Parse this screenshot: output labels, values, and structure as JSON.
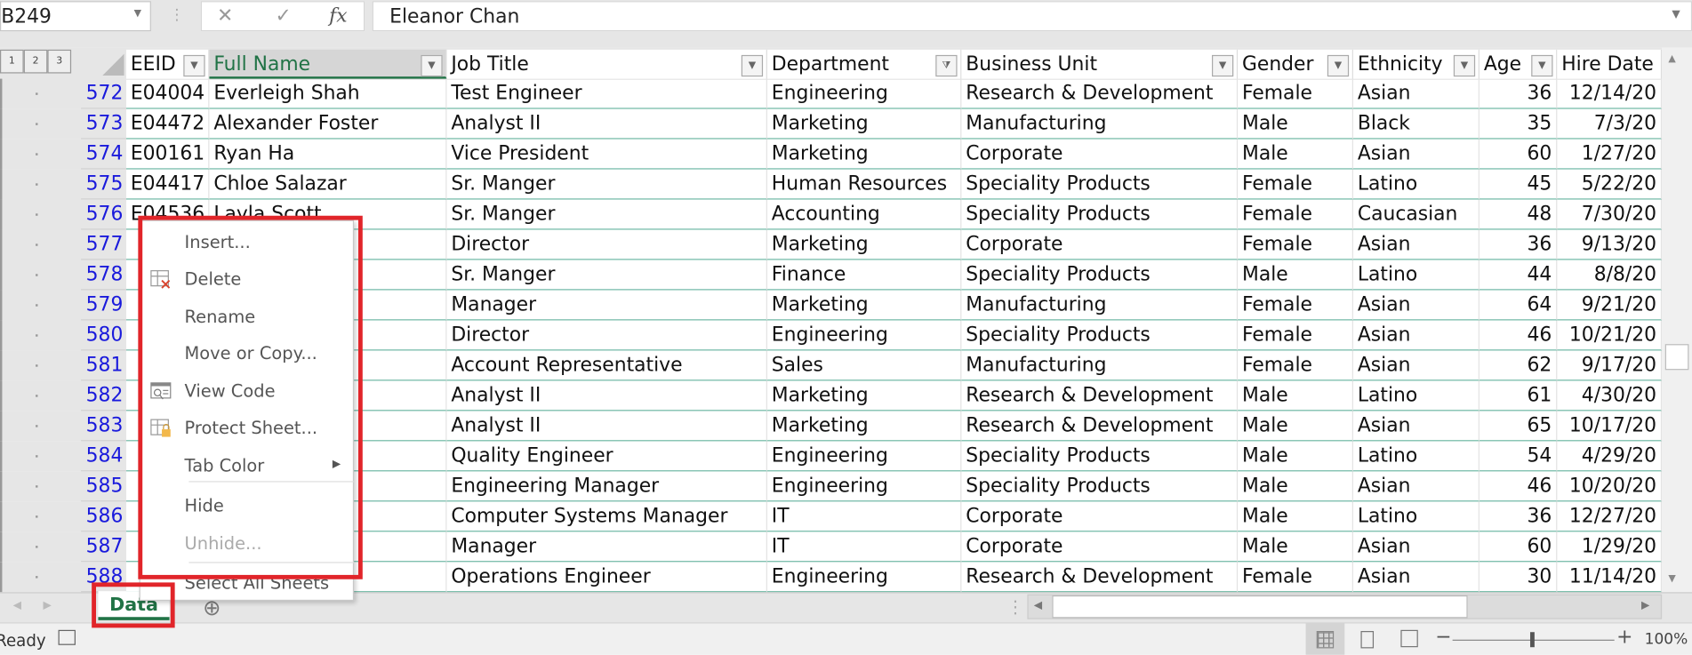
{
  "formula_bar": {
    "name_box": "B249",
    "formula": "Eleanor Chan",
    "cancel_icon": "✕",
    "enter_icon": "✓",
    "fx_label": "fx"
  },
  "outline_levels": [
    "1",
    "2",
    "3"
  ],
  "columns": [
    {
      "label": "EEID",
      "filter": "dropdown"
    },
    {
      "label": "Full Name",
      "filter": "dropdown"
    },
    {
      "label": "Job Title",
      "filter": "dropdown"
    },
    {
      "label": "Department",
      "filter": "filtered"
    },
    {
      "label": "Business Unit",
      "filter": "dropdown"
    },
    {
      "label": "Gender",
      "filter": "dropdown"
    },
    {
      "label": "Ethnicity",
      "filter": "dropdown"
    },
    {
      "label": "Age",
      "filter": "dropdown"
    },
    {
      "label": "Hire Date",
      "filter": "dropdown"
    }
  ],
  "rows": [
    {
      "n": "572",
      "cells": [
        "E04004",
        "Everleigh Shah",
        "Test Engineer",
        "Engineering",
        "Research & Development",
        "Female",
        "Asian",
        "36",
        "12/14/20"
      ]
    },
    {
      "n": "573",
      "cells": [
        "E04472",
        "Alexander Foster",
        "Analyst II",
        "Marketing",
        "Manufacturing",
        "Male",
        "Black",
        "35",
        "7/3/20"
      ]
    },
    {
      "n": "574",
      "cells": [
        "E00161",
        "Ryan Ha",
        "Vice President",
        "Marketing",
        "Corporate",
        "Male",
        "Asian",
        "60",
        "1/27/20"
      ]
    },
    {
      "n": "575",
      "cells": [
        "E04417",
        "Chloe Salazar",
        "Sr. Manger",
        "Human Resources",
        "Speciality Products",
        "Female",
        "Latino",
        "45",
        "5/22/20"
      ]
    },
    {
      "n": "576",
      "cells": [
        "E04536",
        "Layla Scott",
        "Sr. Manger",
        "Accounting",
        "Speciality Products",
        "Female",
        "Caucasian",
        "48",
        "7/30/20"
      ]
    },
    {
      "n": "577",
      "cells": [
        "",
        "",
        "Director",
        "Marketing",
        "Corporate",
        "Female",
        "Asian",
        "36",
        "9/13/20"
      ]
    },
    {
      "n": "578",
      "cells": [
        "",
        "",
        "Sr. Manger",
        "Finance",
        "Speciality Products",
        "Male",
        "Latino",
        "44",
        "8/8/20"
      ]
    },
    {
      "n": "579",
      "cells": [
        "",
        "",
        "Manager",
        "Marketing",
        "Manufacturing",
        "Female",
        "Asian",
        "64",
        "9/21/20"
      ]
    },
    {
      "n": "580",
      "cells": [
        "",
        "",
        "Director",
        "Engineering",
        "Speciality Products",
        "Female",
        "Asian",
        "46",
        "10/21/20"
      ]
    },
    {
      "n": "581",
      "cells": [
        "",
        "",
        "Account Representative",
        "Sales",
        "Manufacturing",
        "Female",
        "Asian",
        "62",
        "9/17/20"
      ]
    },
    {
      "n": "582",
      "cells": [
        "",
        "",
        "Analyst II",
        "Marketing",
        "Research & Development",
        "Male",
        "Latino",
        "61",
        "4/30/20"
      ]
    },
    {
      "n": "583",
      "cells": [
        "",
        "",
        "Analyst II",
        "Marketing",
        "Research & Development",
        "Male",
        "Asian",
        "65",
        "10/17/20"
      ]
    },
    {
      "n": "584",
      "cells": [
        "",
        "",
        "Quality Engineer",
        "Engineering",
        "Speciality Products",
        "Male",
        "Latino",
        "54",
        "4/29/20"
      ]
    },
    {
      "n": "585",
      "cells": [
        "",
        "",
        "Engineering Manager",
        "Engineering",
        "Speciality Products",
        "Male",
        "Asian",
        "46",
        "10/20/20"
      ]
    },
    {
      "n": "586",
      "cells": [
        "",
        "",
        "Computer Systems Manager",
        "IT",
        "Corporate",
        "Male",
        "Latino",
        "36",
        "12/27/20"
      ]
    },
    {
      "n": "587",
      "cells": [
        "",
        "",
        "Manager",
        "IT",
        "Corporate",
        "Male",
        "Asian",
        "60",
        "1/29/20"
      ]
    },
    {
      "n": "588",
      "cells": [
        "",
        "",
        "Operations Engineer",
        "Engineering",
        "Research & Development",
        "Female",
        "Asian",
        "30",
        "11/14/20"
      ]
    }
  ],
  "context_menu": {
    "items": [
      {
        "label": "Insert...",
        "icon": "",
        "enabled": true
      },
      {
        "label": "Delete",
        "icon": "delete-sheet-icon",
        "enabled": true
      },
      {
        "label": "Rename",
        "icon": "",
        "enabled": true
      },
      {
        "label": "Move or Copy...",
        "icon": "",
        "enabled": true
      },
      {
        "label": "View Code",
        "icon": "view-code-icon",
        "enabled": true
      },
      {
        "label": "Protect Sheet...",
        "icon": "protect-sheet-icon",
        "enabled": true
      },
      {
        "label": "Tab Color",
        "icon": "",
        "enabled": true,
        "submenu": true
      },
      {
        "label": "Hide",
        "icon": "",
        "enabled": true
      },
      {
        "label": "Unhide...",
        "icon": "",
        "enabled": false
      },
      {
        "label": "Select All Sheets",
        "icon": "",
        "enabled": true
      }
    ]
  },
  "sheet_tabs": [
    {
      "label": "Data",
      "active": true
    }
  ],
  "add_sheet_icon": "⊕",
  "status": {
    "text": "Ready",
    "zoom": "100%",
    "zoom_minus": "−",
    "zoom_plus": "+"
  },
  "colors": {
    "accent": "#217346",
    "highlight": "#e1252a",
    "row_numbers": "#1a1adc"
  }
}
